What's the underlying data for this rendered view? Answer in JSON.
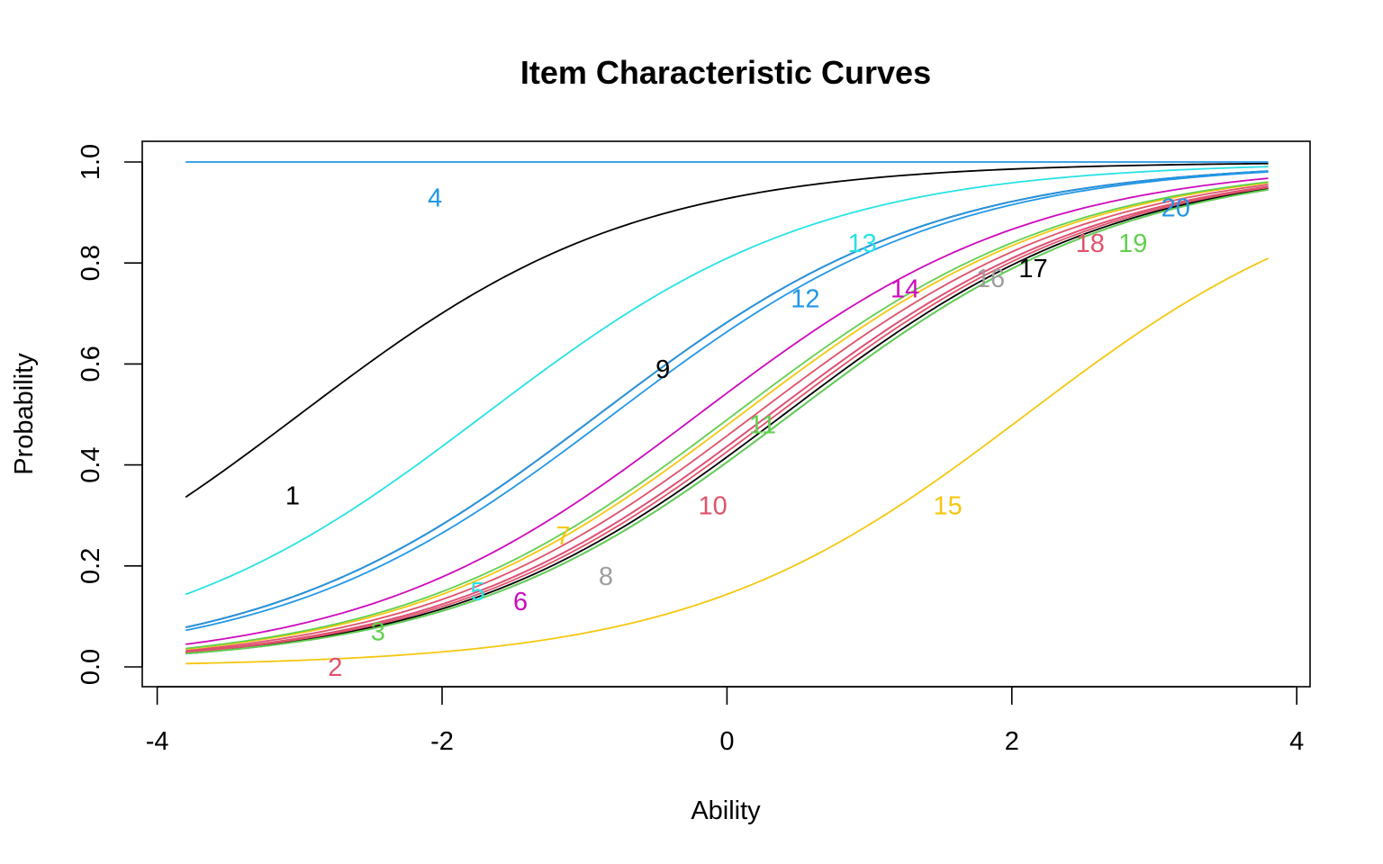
{
  "chart_data": {
    "type": "line",
    "title": "Item Characteristic Curves",
    "xlabel": "Ability",
    "ylabel": "Probability",
    "xlim": [
      -4,
      4
    ],
    "ylim": [
      0,
      1
    ],
    "x_ticks": [
      "-4",
      "-2",
      "0",
      "2",
      "4"
    ],
    "y_ticks": [
      "0.0",
      "0.2",
      "0.4",
      "0.6",
      "0.8",
      "1.0"
    ],
    "x_range": [
      -3.8,
      3.8
    ],
    "grid": false,
    "series": [
      {
        "name": "1",
        "color": "#000000",
        "a": 0.85,
        "b": -3.0,
        "label_at": [
          -3.05,
          0.34
        ]
      },
      {
        "name": "2",
        "color": "#DF536B",
        "a": 0.85,
        "b": 0.2,
        "label_at": [
          -2.75,
          0.0
        ]
      },
      {
        "name": "3",
        "color": "#61D04F",
        "a": 0.85,
        "b": 0.45,
        "label_at": [
          -2.45,
          0.07
        ]
      },
      {
        "name": "4",
        "color": "#2297E6",
        "a": 20.0,
        "b": -10.0,
        "label_at": [
          -2.05,
          0.93
        ]
      },
      {
        "name": "5",
        "color": "#28E2E5",
        "a": 0.85,
        "b": 0.45,
        "label_at": [
          -1.75,
          0.15
        ]
      },
      {
        "name": "6",
        "color": "#CD0BBC",
        "a": 0.85,
        "b": 0.3,
        "label_at": [
          -1.45,
          0.13
        ]
      },
      {
        "name": "7",
        "color": "#F5C710",
        "a": 0.85,
        "b": 0.1,
        "label_at": [
          -1.15,
          0.26
        ]
      },
      {
        "name": "8",
        "color": "#9E9E9E",
        "a": 0.85,
        "b": 0.45,
        "label_at": [
          -0.85,
          0.18
        ]
      },
      {
        "name": "9",
        "color": "#000000",
        "a": 0.85,
        "b": -0.9,
        "label_at": [
          -0.45,
          0.59
        ]
      },
      {
        "name": "10",
        "color": "#DF536B",
        "a": 0.85,
        "b": 0.3,
        "label_at": [
          -0.1,
          0.32
        ]
      },
      {
        "name": "11",
        "color": "#61D04F",
        "a": 0.85,
        "b": 0.05,
        "label_at": [
          0.25,
          0.48
        ]
      },
      {
        "name": "12",
        "color": "#2297E6",
        "a": 0.85,
        "b": -0.8,
        "label_at": [
          0.55,
          0.73
        ]
      },
      {
        "name": "13",
        "color": "#28E2E5",
        "a": 0.85,
        "b": -1.7,
        "label_at": [
          0.95,
          0.84
        ]
      },
      {
        "name": "14",
        "color": "#CD0BBC",
        "a": 0.85,
        "b": -0.2,
        "label_at": [
          1.25,
          0.75
        ]
      },
      {
        "name": "15",
        "color": "#F5C710",
        "a": 0.85,
        "b": 2.1,
        "label_at": [
          1.55,
          0.32
        ]
      },
      {
        "name": "16",
        "color": "#9E9E9E",
        "a": 0.85,
        "b": 0.45,
        "label_at": [
          1.85,
          0.77
        ]
      },
      {
        "name": "17",
        "color": "#000000",
        "a": 0.85,
        "b": 0.4,
        "label_at": [
          2.15,
          0.79
        ]
      },
      {
        "name": "18",
        "color": "#DF536B",
        "a": 0.85,
        "b": 0.35,
        "label_at": [
          2.55,
          0.84
        ]
      },
      {
        "name": "19",
        "color": "#61D04F",
        "a": 0.85,
        "b": 0.45,
        "label_at": [
          2.85,
          0.84
        ]
      },
      {
        "name": "20",
        "color": "#2297E6",
        "a": 0.85,
        "b": -0.9,
        "label_at": [
          3.15,
          0.91
        ]
      }
    ]
  }
}
